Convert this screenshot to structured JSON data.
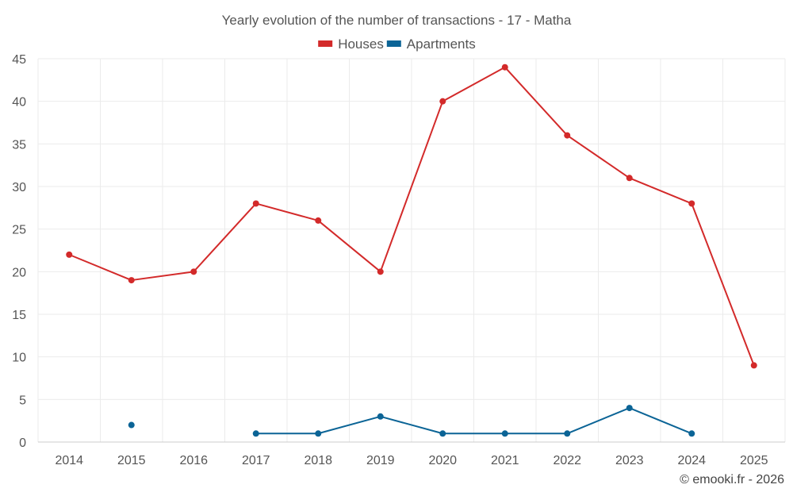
{
  "chart_data": {
    "type": "line",
    "title": "Yearly evolution of the number of transactions - 17 - Matha",
    "categories": [
      "2014",
      "2015",
      "2016",
      "2017",
      "2018",
      "2019",
      "2020",
      "2021",
      "2022",
      "2023",
      "2024",
      "2025"
    ],
    "series": [
      {
        "name": "Houses",
        "color": "#d32a2a",
        "values": [
          22,
          19,
          20,
          28,
          26,
          20,
          40,
          44,
          36,
          31,
          28,
          9
        ]
      },
      {
        "name": "Apartments",
        "color": "#0b6496",
        "values": [
          null,
          2,
          null,
          1,
          1,
          3,
          1,
          1,
          1,
          4,
          1,
          null
        ]
      }
    ],
    "ylim": [
      0,
      45
    ],
    "yticks": [
      0,
      5,
      10,
      15,
      20,
      25,
      30,
      35,
      40,
      45
    ],
    "xlabel": "",
    "ylabel": "",
    "grid": true,
    "legend": "top-center"
  },
  "credit": "© emooki.fr - 2026"
}
